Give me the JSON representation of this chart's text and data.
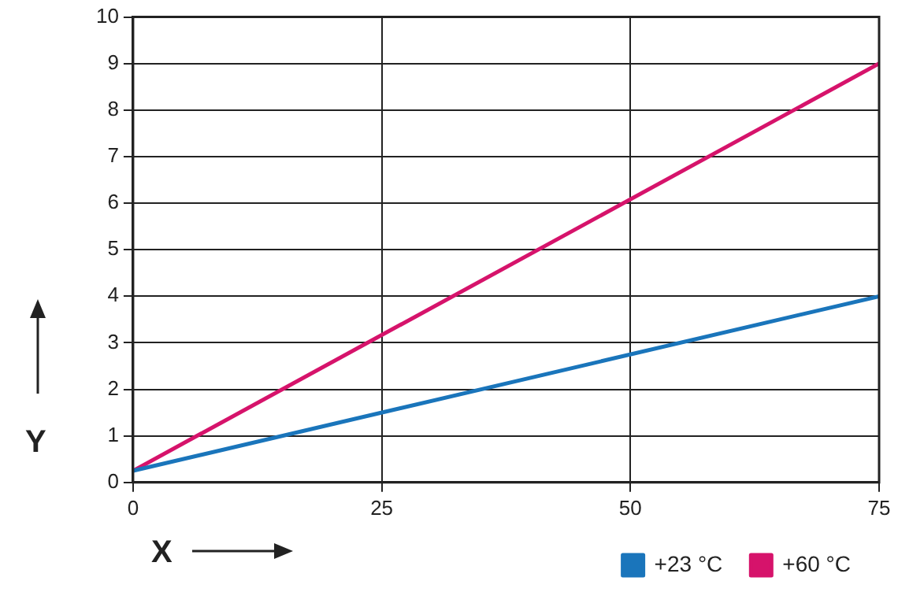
{
  "chart_data": {
    "type": "line",
    "xlabel": "X",
    "ylabel": "Y",
    "x": [
      0,
      75
    ],
    "series": [
      {
        "name": "+23 °C",
        "color": "#1a75bb",
        "values": [
          0.25,
          4
        ]
      },
      {
        "name": "+60 °C",
        "color": "#d6136b",
        "values": [
          0.25,
          9
        ]
      }
    ],
    "xlim": [
      0,
      75
    ],
    "xticks": [
      0,
      25,
      50,
      75
    ],
    "ylim": [
      0,
      10
    ],
    "yticks": [
      0,
      1,
      2,
      3,
      4,
      5,
      6,
      7,
      8,
      9,
      10
    ],
    "grid": true,
    "legend": "bottom right",
    "marker": "none",
    "line_style": "solid"
  }
}
